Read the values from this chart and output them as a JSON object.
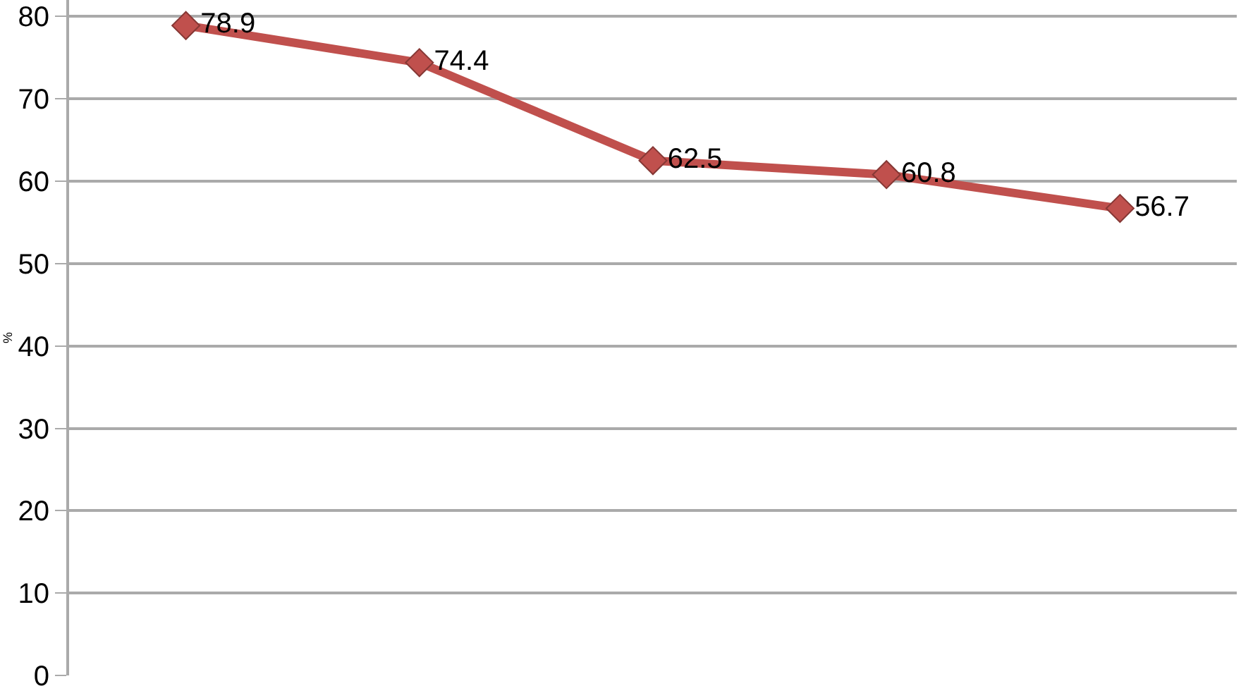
{
  "chart_data": {
    "type": "line",
    "ylabel": "%",
    "categories": [
      null,
      null,
      null,
      null,
      null
    ],
    "series": [
      {
        "color": "#c0504d",
        "values": [
          78.9,
          74.4,
          62.5,
          60.8,
          56.7
        ]
      }
    ],
    "ylim": [
      0,
      82
    ],
    "yticks": [
      0,
      10,
      20,
      30,
      40,
      50,
      60,
      70,
      80
    ],
    "grid": "y",
    "marker": "diamond",
    "line_style": "solid",
    "data_labels": true,
    "tick_labels": "y"
  }
}
